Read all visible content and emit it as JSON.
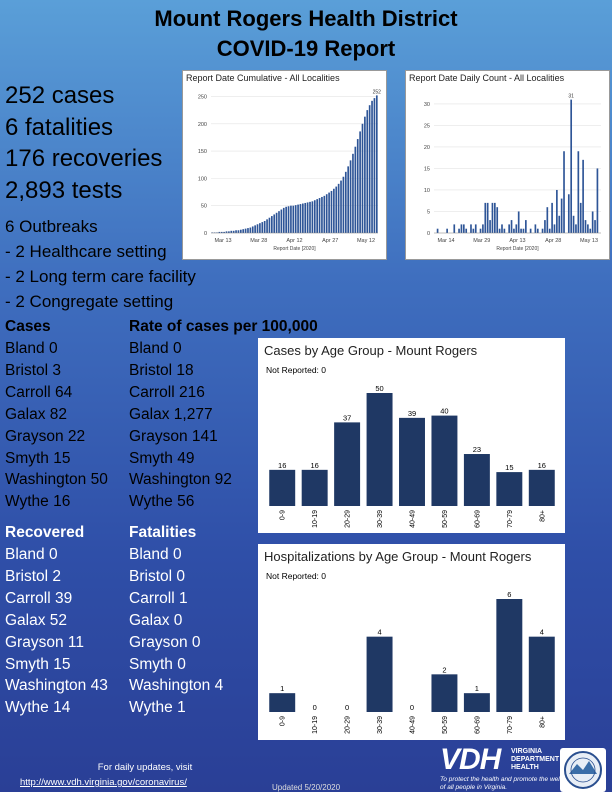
{
  "title": {
    "line1": "Mount Rogers Health District",
    "line2": "COVID-19 Report"
  },
  "summary": {
    "cases": "252 cases",
    "fatalities": "6 fatalities",
    "recoveries": "176 recoveries",
    "tests": "2,893 tests"
  },
  "outbreaks": {
    "header": "6 Outbreaks",
    "items": [
      "- 2 Healthcare setting",
      "- 2 Long term care facility",
      "- 2 Congregate setting"
    ]
  },
  "cases_table": {
    "header": "Cases",
    "rows": [
      "Bland 0",
      "Bristol 3",
      "Carroll 64",
      "Galax 82",
      "Grayson 22",
      "Smyth 15",
      "Washington 50",
      "Wythe 16"
    ]
  },
  "rate_table": {
    "header": "Rate of cases per 100,000",
    "rows": [
      "Bland 0",
      "Bristol 18",
      "Carroll 216",
      "Galax 1,277",
      "Grayson 141",
      "Smyth 49",
      "Washington 92",
      "Wythe 56"
    ]
  },
  "recovered_table": {
    "header": "Recovered",
    "rows": [
      "Bland 0",
      "Bristol 2",
      "Carroll 39",
      "Galax 52",
      "Grayson 11",
      "Smyth 15",
      "Washington 43",
      "Wythe 14"
    ]
  },
  "fatalities_table": {
    "header": "Fatalities",
    "rows": [
      "Bland 0",
      "Bristol 0",
      "Carroll 1",
      "Galax 0",
      "Grayson 0",
      "Smyth 0",
      "Washington 4",
      "Wythe 1"
    ]
  },
  "footer": {
    "note": "For daily updates, visit",
    "link": "http://www.vdh.virginia.gov/coronavirus/",
    "updated": "Updated 5/20/2020",
    "vdh_logo": "VDH",
    "vdh_name": "VIRGINIA DEPARTMENT OF HEALTH",
    "vdh_tagline": "To protect the health and promote the well-being of all people in Virginia."
  },
  "colors": {
    "bar": "#1f3864",
    "small_bar": "#2e5597",
    "accent_bg": "#3f6fbf"
  },
  "chart_data": [
    {
      "type": "bar",
      "title": "Report Date Cumulative - All Localities",
      "xlabel": "Report Date [2020]",
      "ylabel": "",
      "x_ticks": [
        "Mar 13",
        "Mar 28",
        "Apr 12",
        "Apr 27",
        "May 12"
      ],
      "y_ticks": [
        0,
        50,
        100,
        150,
        200,
        250
      ],
      "ylim": [
        0,
        260
      ],
      "peak_label": "252",
      "values": [
        1,
        1,
        1,
        2,
        2,
        2,
        3,
        3,
        4,
        4,
        5,
        5,
        6,
        7,
        8,
        9,
        10,
        12,
        14,
        16,
        18,
        20,
        22,
        25,
        28,
        31,
        34,
        37,
        40,
        43,
        46,
        48,
        49,
        50,
        50,
        51,
        52,
        53,
        54,
        55,
        56,
        57,
        58,
        60,
        62,
        64,
        66,
        68,
        71,
        74,
        77,
        81,
        85,
        90,
        96,
        103,
        112,
        122,
        133,
        145,
        158,
        172,
        186,
        200,
        213,
        225,
        234,
        242,
        247,
        252
      ]
    },
    {
      "type": "bar",
      "title": "Report Date Daily Count - All Localities",
      "xlabel": "Report Date [2020]",
      "ylabel": "",
      "x_ticks": [
        "Mar 14",
        "Mar 29",
        "Apr 13",
        "Apr 28",
        "May 13"
      ],
      "y_ticks": [
        0,
        5,
        10,
        15,
        20,
        25,
        30
      ],
      "ylim": [
        0,
        33
      ],
      "peak_label": "31",
      "values": [
        0,
        1,
        0,
        0,
        0,
        1,
        0,
        0,
        2,
        0,
        1,
        2,
        2,
        1,
        0,
        2,
        1,
        2,
        0,
        1,
        2,
        7,
        7,
        3,
        7,
        7,
        6,
        1,
        2,
        1,
        0,
        2,
        3,
        1,
        2,
        5,
        1,
        1,
        3,
        0,
        1,
        0,
        2,
        1,
        0,
        1,
        3,
        6,
        1,
        7,
        2,
        10,
        4,
        8,
        19,
        0,
        9,
        31,
        4,
        2,
        19,
        7,
        17,
        3,
        2,
        1,
        5,
        3,
        15,
        0
      ]
    },
    {
      "type": "bar",
      "title": "Cases by Age Group - Mount Rogers",
      "note": "Not Reported: 0",
      "categories": [
        "0-9",
        "10-19",
        "20-29",
        "30-39",
        "40-49",
        "50-59",
        "60-69",
        "70-79",
        "80+"
      ],
      "values": [
        16,
        16,
        37,
        50,
        39,
        40,
        23,
        15,
        16
      ],
      "ylim": [
        0,
        50
      ]
    },
    {
      "type": "bar",
      "title": "Hospitalizations by Age Group - Mount Rogers",
      "note": "Not Reported: 0",
      "categories": [
        "0-9",
        "10-19",
        "20-29",
        "30-39",
        "40-49",
        "50-59",
        "60-69",
        "70-79",
        "80+"
      ],
      "values": [
        1,
        0,
        0,
        4,
        0,
        2,
        1,
        6,
        4
      ],
      "ylim": [
        0,
        6
      ]
    }
  ]
}
